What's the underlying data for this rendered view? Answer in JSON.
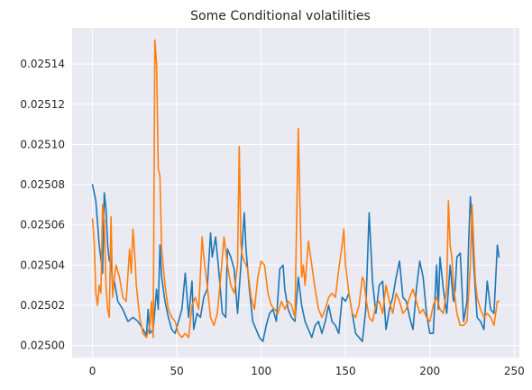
{
  "chart_data": {
    "type": "line",
    "title": "Some Conditional volatilities",
    "xlabel": "",
    "ylabel": "",
    "xlim": [
      -12.05,
      253.05
    ],
    "ylim": [
      0.024994,
      0.025158
    ],
    "xticks": [
      0,
      50,
      100,
      150,
      200,
      250
    ],
    "yticks": [
      0.025,
      0.02502,
      0.02504,
      0.02506,
      0.02508,
      0.0251,
      0.02512,
      0.02514
    ],
    "ytick_labels": [
      "0.02500",
      "0.02502",
      "0.02504",
      "0.02506",
      "0.02508",
      "0.02510",
      "0.02512",
      "0.02514"
    ],
    "grid": true,
    "style": "seaborn-darkgrid",
    "series": [
      {
        "color": "#1f77b4",
        "anchors": [
          [
            0,
            0.02508
          ],
          [
            2,
            0.025072
          ],
          [
            4,
            0.02505
          ],
          [
            6,
            0.025036
          ],
          [
            7,
            0.025076
          ],
          [
            8,
            0.025068
          ],
          [
            9,
            0.02505
          ],
          [
            10,
            0.025042
          ],
          [
            11,
            0.025044
          ],
          [
            12,
            0.025028
          ],
          [
            13,
            0.025032
          ],
          [
            15,
            0.025022
          ],
          [
            18,
            0.025018
          ],
          [
            21,
            0.025012
          ],
          [
            24,
            0.025014
          ],
          [
            27,
            0.025012
          ],
          [
            30,
            0.025008
          ],
          [
            32,
            0.025005
          ],
          [
            33,
            0.025018
          ],
          [
            34,
            0.025006
          ],
          [
            36,
            0.025008
          ],
          [
            38,
            0.025028
          ],
          [
            39,
            0.025018
          ],
          [
            40,
            0.02505
          ],
          [
            41,
            0.025034
          ],
          [
            43,
            0.025022
          ],
          [
            45,
            0.025014
          ],
          [
            47,
            0.025008
          ],
          [
            49,
            0.025006
          ],
          [
            51,
            0.025012
          ],
          [
            53,
            0.025018
          ],
          [
            55,
            0.025036
          ],
          [
            57,
            0.025014
          ],
          [
            59,
            0.025032
          ],
          [
            60,
            0.025008
          ],
          [
            62,
            0.025016
          ],
          [
            64,
            0.025014
          ],
          [
            66,
            0.025024
          ],
          [
            68,
            0.025028
          ],
          [
            70,
            0.025056
          ],
          [
            71,
            0.025044
          ],
          [
            73,
            0.025054
          ],
          [
            75,
            0.025036
          ],
          [
            77,
            0.025016
          ],
          [
            79,
            0.025014
          ],
          [
            80,
            0.025048
          ],
          [
            82,
            0.025044
          ],
          [
            84,
            0.025038
          ],
          [
            86,
            0.025016
          ],
          [
            88,
            0.02504
          ],
          [
            90,
            0.025066
          ],
          [
            91,
            0.025048
          ],
          [
            93,
            0.025028
          ],
          [
            95,
            0.025012
          ],
          [
            97,
            0.025008
          ],
          [
            99,
            0.025004
          ],
          [
            101,
            0.025002
          ],
          [
            103,
            0.02501
          ],
          [
            105,
            0.025016
          ],
          [
            107,
            0.025018
          ],
          [
            109,
            0.025012
          ],
          [
            111,
            0.025038
          ],
          [
            113,
            0.02504
          ],
          [
            114,
            0.025028
          ],
          [
            116,
            0.025018
          ],
          [
            118,
            0.025014
          ],
          [
            120,
            0.025012
          ],
          [
            122,
            0.025034
          ],
          [
            124,
            0.02502
          ],
          [
            126,
            0.025012
          ],
          [
            128,
            0.025008
          ],
          [
            130,
            0.025004
          ],
          [
            132,
            0.02501
          ],
          [
            134,
            0.025012
          ],
          [
            136,
            0.025006
          ],
          [
            138,
            0.025012
          ],
          [
            140,
            0.02502
          ],
          [
            142,
            0.025012
          ],
          [
            144,
            0.02501
          ],
          [
            146,
            0.025006
          ],
          [
            148,
            0.025024
          ],
          [
            150,
            0.025022
          ],
          [
            152,
            0.025026
          ],
          [
            154,
            0.025016
          ],
          [
            156,
            0.025006
          ],
          [
            158,
            0.025004
          ],
          [
            160,
            0.025002
          ],
          [
            162,
            0.025018
          ],
          [
            164,
            0.025066
          ],
          [
            166,
            0.025032
          ],
          [
            168,
            0.025016
          ],
          [
            170,
            0.02503
          ],
          [
            172,
            0.025032
          ],
          [
            174,
            0.025008
          ],
          [
            176,
            0.025018
          ],
          [
            178,
            0.025024
          ],
          [
            180,
            0.025034
          ],
          [
            182,
            0.025042
          ],
          [
            184,
            0.025024
          ],
          [
            186,
            0.025022
          ],
          [
            188,
            0.025014
          ],
          [
            190,
            0.025008
          ],
          [
            192,
            0.025028
          ],
          [
            194,
            0.025042
          ],
          [
            196,
            0.025034
          ],
          [
            198,
            0.025016
          ],
          [
            200,
            0.025006
          ],
          [
            202,
            0.025006
          ],
          [
            204,
            0.02504
          ],
          [
            205,
            0.025018
          ],
          [
            206,
            0.025044
          ],
          [
            208,
            0.025028
          ],
          [
            210,
            0.025016
          ],
          [
            212,
            0.02504
          ],
          [
            214,
            0.025022
          ],
          [
            215,
            0.025028
          ],
          [
            216,
            0.025044
          ],
          [
            218,
            0.025046
          ],
          [
            220,
            0.025012
          ],
          [
            222,
            0.025022
          ],
          [
            223,
            0.025052
          ],
          [
            224,
            0.025074
          ],
          [
            225,
            0.02506
          ],
          [
            226,
            0.02504
          ],
          [
            228,
            0.025014
          ],
          [
            230,
            0.025012
          ],
          [
            232,
            0.025008
          ],
          [
            234,
            0.025032
          ],
          [
            236,
            0.025018
          ],
          [
            238,
            0.025016
          ],
          [
            240,
            0.02505
          ],
          [
            241,
            0.025044
          ]
        ]
      },
      {
        "color": "#ff7f0e",
        "anchors": [
          [
            0,
            0.025063
          ],
          [
            1,
            0.025052
          ],
          [
            2,
            0.025026
          ],
          [
            3,
            0.02502
          ],
          [
            4,
            0.02503
          ],
          [
            5,
            0.025026
          ],
          [
            6,
            0.02507
          ],
          [
            7,
            0.025062
          ],
          [
            8,
            0.02503
          ],
          [
            9,
            0.025018
          ],
          [
            10,
            0.025014
          ],
          [
            11,
            0.025064
          ],
          [
            12,
            0.025024
          ],
          [
            13,
            0.025034
          ],
          [
            14,
            0.02504
          ],
          [
            16,
            0.025034
          ],
          [
            18,
            0.025024
          ],
          [
            20,
            0.025022
          ],
          [
            22,
            0.025048
          ],
          [
            23,
            0.025036
          ],
          [
            24,
            0.025058
          ],
          [
            25,
            0.025046
          ],
          [
            26,
            0.02503
          ],
          [
            28,
            0.025014
          ],
          [
            30,
            0.025006
          ],
          [
            32,
            0.025004
          ],
          [
            34,
            0.02501
          ],
          [
            35,
            0.025022
          ],
          [
            36,
            0.025004
          ],
          [
            37,
            0.025152
          ],
          [
            38,
            0.02514
          ],
          [
            39,
            0.025088
          ],
          [
            40,
            0.025084
          ],
          [
            41,
            0.025048
          ],
          [
            43,
            0.02503
          ],
          [
            45,
            0.025018
          ],
          [
            47,
            0.025014
          ],
          [
            49,
            0.025012
          ],
          [
            51,
            0.025006
          ],
          [
            53,
            0.025004
          ],
          [
            55,
            0.025006
          ],
          [
            57,
            0.025004
          ],
          [
            59,
            0.02502
          ],
          [
            61,
            0.025024
          ],
          [
            63,
            0.025018
          ],
          [
            65,
            0.025054
          ],
          [
            66,
            0.025044
          ],
          [
            68,
            0.02503
          ],
          [
            70,
            0.025014
          ],
          [
            72,
            0.02501
          ],
          [
            74,
            0.025016
          ],
          [
            76,
            0.025034
          ],
          [
            78,
            0.025054
          ],
          [
            80,
            0.02504
          ],
          [
            82,
            0.02503
          ],
          [
            84,
            0.025026
          ],
          [
            86,
            0.02504
          ],
          [
            87,
            0.025099
          ],
          [
            88,
            0.02505
          ],
          [
            89,
            0.025044
          ],
          [
            90,
            0.025042
          ],
          [
            92,
            0.025038
          ],
          [
            94,
            0.025024
          ],
          [
            96,
            0.025018
          ],
          [
            98,
            0.025034
          ],
          [
            100,
            0.025042
          ],
          [
            102,
            0.02504
          ],
          [
            104,
            0.025026
          ],
          [
            106,
            0.02502
          ],
          [
            108,
            0.025018
          ],
          [
            110,
            0.025016
          ],
          [
            112,
            0.025022
          ],
          [
            114,
            0.025018
          ],
          [
            116,
            0.025022
          ],
          [
            118,
            0.02502
          ],
          [
            120,
            0.025014
          ],
          [
            122,
            0.025108
          ],
          [
            123,
            0.02507
          ],
          [
            124,
            0.025034
          ],
          [
            125,
            0.02504
          ],
          [
            126,
            0.02503
          ],
          [
            128,
            0.025052
          ],
          [
            130,
            0.02504
          ],
          [
            132,
            0.025028
          ],
          [
            134,
            0.025018
          ],
          [
            136,
            0.025014
          ],
          [
            138,
            0.025018
          ],
          [
            140,
            0.025024
          ],
          [
            142,
            0.025026
          ],
          [
            144,
            0.025024
          ],
          [
            146,
            0.025038
          ],
          [
            148,
            0.02505
          ],
          [
            149,
            0.025058
          ],
          [
            150,
            0.02504
          ],
          [
            152,
            0.025026
          ],
          [
            154,
            0.025016
          ],
          [
            156,
            0.025014
          ],
          [
            158,
            0.02502
          ],
          [
            160,
            0.025034
          ],
          [
            161,
            0.025032
          ],
          [
            162,
            0.025024
          ],
          [
            164,
            0.025014
          ],
          [
            166,
            0.025012
          ],
          [
            168,
            0.02502
          ],
          [
            170,
            0.025022
          ],
          [
            172,
            0.025016
          ],
          [
            174,
            0.02503
          ],
          [
            176,
            0.025022
          ],
          [
            178,
            0.025016
          ],
          [
            180,
            0.025026
          ],
          [
            182,
            0.025022
          ],
          [
            184,
            0.025016
          ],
          [
            186,
            0.025018
          ],
          [
            188,
            0.025024
          ],
          [
            190,
            0.025028
          ],
          [
            192,
            0.025022
          ],
          [
            194,
            0.025016
          ],
          [
            196,
            0.025018
          ],
          [
            198,
            0.025014
          ],
          [
            200,
            0.025012
          ],
          [
            202,
            0.02502
          ],
          [
            204,
            0.025024
          ],
          [
            206,
            0.025018
          ],
          [
            208,
            0.025016
          ],
          [
            210,
            0.025028
          ],
          [
            211,
            0.025072
          ],
          [
            212,
            0.02505
          ],
          [
            213,
            0.025044
          ],
          [
            214,
            0.02503
          ],
          [
            216,
            0.025016
          ],
          [
            218,
            0.02501
          ],
          [
            220,
            0.02501
          ],
          [
            222,
            0.025012
          ],
          [
            224,
            0.02504
          ],
          [
            225,
            0.02507
          ],
          [
            226,
            0.02505
          ],
          [
            227,
            0.025032
          ],
          [
            228,
            0.025024
          ],
          [
            230,
            0.025018
          ],
          [
            232,
            0.025014
          ],
          [
            234,
            0.025016
          ],
          [
            236,
            0.025014
          ],
          [
            238,
            0.02501
          ],
          [
            240,
            0.025022
          ],
          [
            241,
            0.025022
          ]
        ]
      }
    ]
  }
}
